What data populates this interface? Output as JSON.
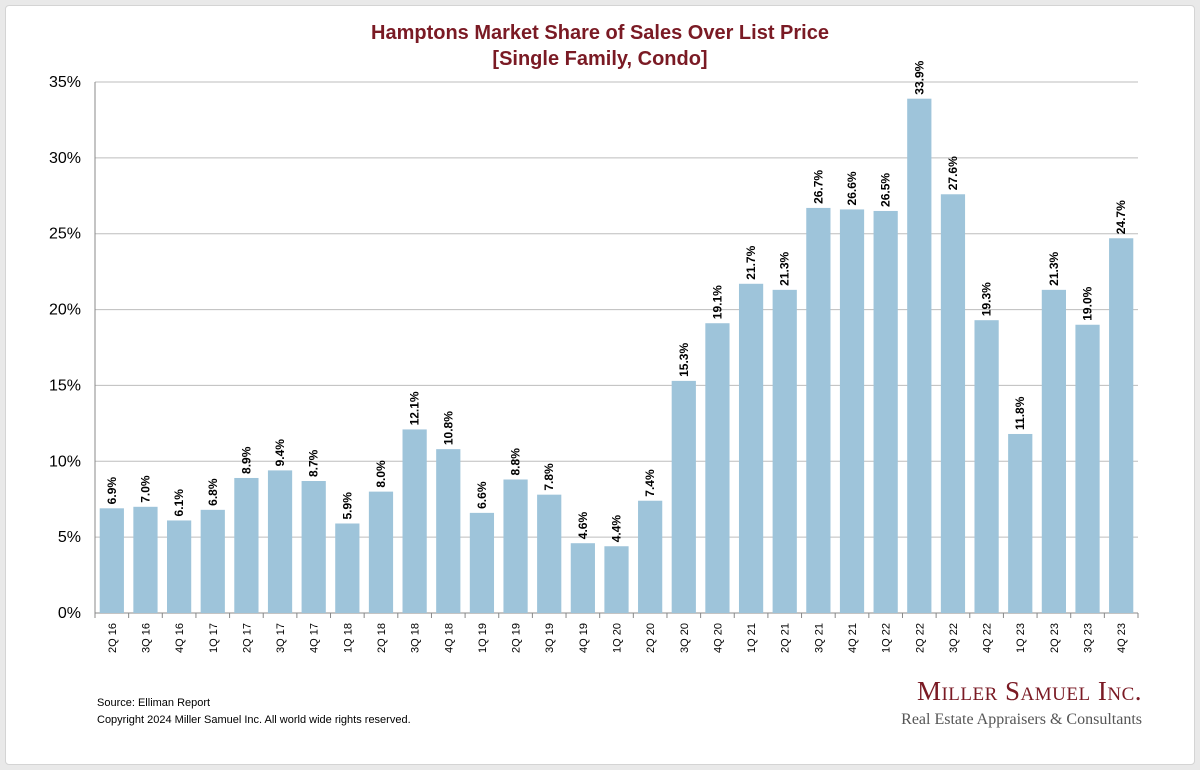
{
  "chart_data": {
    "type": "bar",
    "title": "Hamptons Market Share of Sales Over List Price",
    "subtitle": "[Single Family, Condo]",
    "xlabel": "",
    "ylabel": "",
    "ylim": [
      0,
      35
    ],
    "yticks": [
      "0%",
      "5%",
      "10%",
      "15%",
      "20%",
      "25%",
      "30%",
      "35%"
    ],
    "ytick_values": [
      0,
      5,
      10,
      15,
      20,
      25,
      30,
      35
    ],
    "grid": true,
    "bar_color": "#9ec4da",
    "categories": [
      "2Q 16",
      "3Q 16",
      "4Q 16",
      "1Q 17",
      "2Q 17",
      "3Q 17",
      "4Q 17",
      "1Q 18",
      "2Q 18",
      "3Q 18",
      "4Q 18",
      "1Q 19",
      "2Q 19",
      "3Q 19",
      "4Q 19",
      "1Q 20",
      "2Q 20",
      "3Q 20",
      "4Q 20",
      "1Q 21",
      "2Q 21",
      "3Q 21",
      "4Q 21",
      "1Q 22",
      "2Q 22",
      "3Q 22",
      "4Q 22",
      "1Q 23",
      "2Q 23",
      "3Q 23",
      "4Q 23"
    ],
    "values": [
      6.9,
      7.0,
      6.1,
      6.8,
      8.9,
      9.4,
      8.7,
      5.9,
      8.0,
      12.1,
      10.8,
      6.6,
      8.8,
      7.8,
      4.6,
      4.4,
      7.4,
      15.3,
      19.1,
      21.7,
      21.3,
      26.7,
      26.6,
      26.5,
      33.9,
      27.6,
      19.3,
      11.8,
      21.3,
      19.0,
      24.7
    ],
    "data_labels": [
      "6.9%",
      "7.0%",
      "6.1%",
      "6.8%",
      "8.9%",
      "9.4%",
      "8.7%",
      "5.9%",
      "8.0%",
      "12.1%",
      "10.8%",
      "6.6%",
      "8.8%",
      "7.8%",
      "4.6%",
      "4.4%",
      "7.4%",
      "15.3%",
      "19.1%",
      "21.7%",
      "21.3%",
      "26.7%",
      "26.6%",
      "26.5%",
      "33.9%",
      "27.6%",
      "19.3%",
      "11.8%",
      "21.3%",
      "19.0%",
      "24.7%"
    ]
  },
  "footer": {
    "source": "Source: Elliman Report",
    "copyright": "Copyright 2024 Miller Samuel Inc.  All world wide rights reserved."
  },
  "brand": {
    "name": "Miller Samuel Inc.",
    "tagline": "Real Estate Appraisers & Consultants",
    "color": "#7a1a24"
  }
}
